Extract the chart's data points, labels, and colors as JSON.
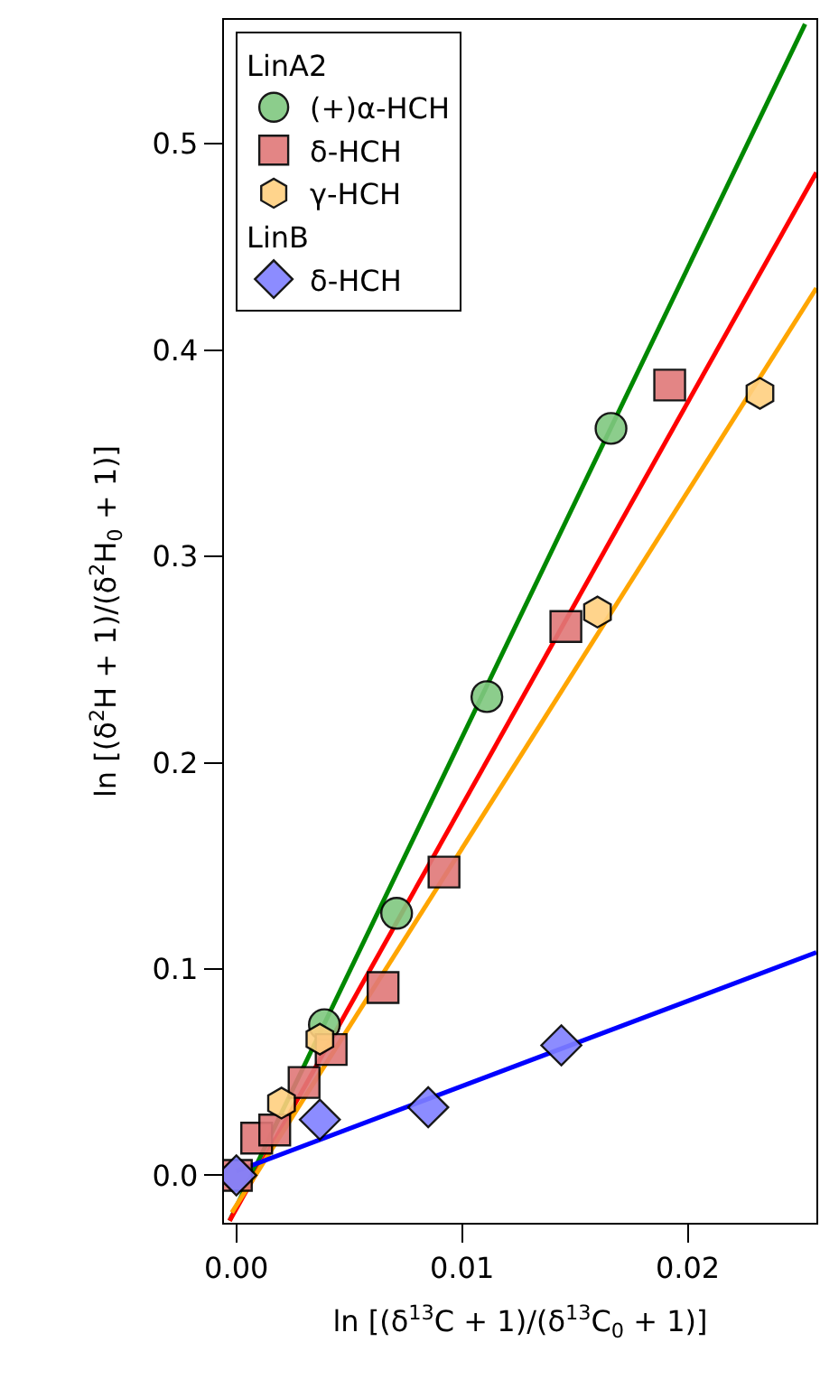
{
  "chart_data": {
    "type": "scatter",
    "xlabel": "ln [(δ$^{13}$C + 1)/(δ$^{13}$C$_{0}$ + 1)]",
    "ylabel": "ln [(δ$^{2}$H + 1)/(δ$^{2}$H$_{0}$ + 1)]",
    "xlim": [
      -0.00055,
      0.0257
    ],
    "ylim": [
      -0.023,
      0.56
    ],
    "xticks": [
      {
        "value": 0,
        "label": "0.00"
      },
      0.01,
      0.02
    ],
    "yticks": [
      {
        "value": 0,
        "label": "0.0"
      },
      0.1,
      0.2,
      0.3,
      0.4,
      0.5
    ],
    "grid": false,
    "legend": "top left",
    "annotations": [
      "LinA2",
      "LinB"
    ],
    "series": [
      {
        "name": "(+)α-HCH",
        "marker": "circle",
        "color": "#80c880",
        "x": [
          0.0039,
          0.0071,
          0.0111,
          0.0166
        ],
        "values": [
          0.073,
          0.127,
          0.232,
          0.362
        ]
      },
      {
        "name": "δ-HCH",
        "marker": "square",
        "color": "#e07878",
        "x": [
          0,
          0.0002,
          0.0005,
          0.0009,
          0.0017,
          0.003,
          0.0042,
          0.0065,
          0.0092,
          0.0146,
          0.0192
        ],
        "values": [
          0,
          null,
          null,
          0.018,
          0.022,
          0.045,
          0.061,
          0.091,
          0.147,
          0.266,
          0.383
        ]
      },
      {
        "name": "γ-HCH",
        "color": "#ffd080",
        "x": [
          0.002,
          0.0037,
          0.016,
          0.0232
        ],
        "values": [
          0.035,
          0.066,
          0.273,
          0.379
        ]
      },
      {
        "name": "δ-HCH",
        "marker": "diamond",
        "color": "#8080ff",
        "x": [
          0,
          0.0037,
          0.0085,
          0.0144
        ],
        "values": [
          0,
          0.027,
          0.033,
          0.063
        ]
      },
      {
        "type": "line",
        "color": "#008800",
        "x": [
          -0.0003,
          0.0252
        ],
        "values": [
          -0.022,
          0.558
        ]
      },
      {
        "type": "line",
        "color": "#ff0000",
        "x": [
          -0.0003,
          0.0257
        ],
        "values": [
          -0.022,
          0.486
        ]
      },
      {
        "type": "line",
        "color": "#ffa500",
        "x": [
          -0.0002,
          0.0257
        ],
        "values": [
          -0.018,
          0.43
        ]
      },
      {
        "type": "line",
        "color": "#0000ff",
        "x": [
          0,
          0.0257
        ],
        "values": [
          0.002,
          0.108
        ]
      }
    ]
  }
}
